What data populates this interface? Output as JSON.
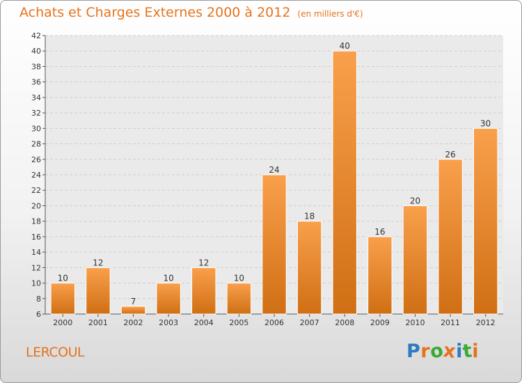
{
  "chart_data": {
    "type": "bar",
    "title": "Achats et Charges Externes 2000 à 2012",
    "subtitle": "(en milliers d'€)",
    "categories": [
      "2000",
      "2001",
      "2002",
      "2003",
      "2004",
      "2005",
      "2006",
      "2007",
      "2008",
      "2009",
      "2010",
      "2011",
      "2012"
    ],
    "values": [
      10,
      12,
      7,
      10,
      12,
      10,
      24,
      18,
      40,
      16,
      20,
      26,
      30
    ],
    "ylim": [
      6,
      42
    ],
    "yticks": [
      6,
      8,
      10,
      12,
      14,
      16,
      18,
      20,
      22,
      24,
      26,
      28,
      30,
      32,
      34,
      36,
      38,
      40,
      42
    ],
    "grid": true,
    "bar_color_light": "#f9a04c",
    "bar_color_dark": "#d06f14"
  },
  "place": "LERCOUL",
  "logo": {
    "text": "Proxiti",
    "letter_colors": [
      "#2e79c4",
      "#e5731e",
      "#3aa935",
      "#e5731e",
      "#2e79c4",
      "#3aa935",
      "#e5731e"
    ]
  }
}
